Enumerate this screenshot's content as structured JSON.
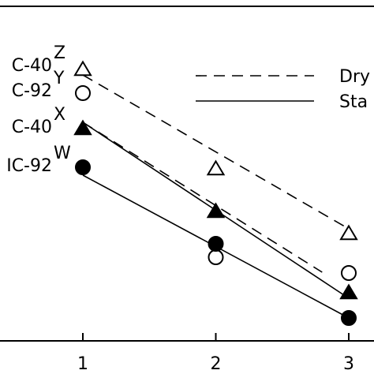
{
  "chart_data": {
    "type": "line",
    "x_ticks": [
      "1",
      "2",
      "3"
    ],
    "x": [
      1,
      2,
      3
    ],
    "series": [
      {
        "name": "C-40ᶻ",
        "label": "C-40",
        "sup": "Z",
        "marker": "triangle-open",
        "line": "dashed",
        "values": [
          88,
          214,
          296
        ]
      },
      {
        "name": "C-92ʸ",
        "label": "C-92",
        "sup": "Y",
        "marker": "circle-open",
        "line": "none",
        "values": [
          118,
          326,
          346
        ]
      },
      {
        "name": "C-40ˣ",
        "label": "C-40",
        "sup": "X",
        "marker": "triangle-filled",
        "line": "solid",
        "values": [
          163,
          268,
          371
        ]
      },
      {
        "name": "IC-92ʷ",
        "label": "IC-92",
        "sup": "W",
        "marker": "circle-filled",
        "line": "solid",
        "values": [
          212,
          309,
          403
        ]
      }
    ],
    "fit_lines": [
      {
        "style": "dashed",
        "from": [
          1,
          95
        ],
        "to": [
          3,
          290
        ]
      },
      {
        "style": "dashed",
        "from": [
          1,
          155
        ],
        "to": [
          2.8,
          345
        ]
      },
      {
        "style": "solid",
        "from": [
          1,
          155
        ],
        "to": [
          3,
          378
        ]
      },
      {
        "style": "solid",
        "from": [
          1,
          222
        ],
        "to": [
          3,
          403
        ]
      }
    ],
    "legend": [
      {
        "label": "Dry",
        "line": "dashed"
      },
      {
        "label": "Sta",
        "line": "solid"
      }
    ],
    "xlim": [
      0,
      3.1
    ],
    "ylim": [
      0,
      440
    ],
    "legend_position": "top-right",
    "grid": false
  }
}
